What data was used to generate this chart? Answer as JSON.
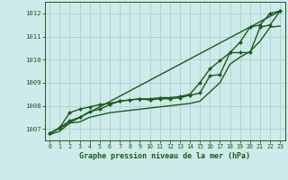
{
  "title": "Graphe pression niveau de la mer (hPa)",
  "background_color": "#ceeaea",
  "grid_color": "#aed4d4",
  "line_color": "#1a5c1a",
  "marker_color": "#1a5c1a",
  "xlim": [
    -0.5,
    23.5
  ],
  "ylim": [
    1006.5,
    1012.5
  ],
  "yticks": [
    1007,
    1008,
    1009,
    1010,
    1011,
    1012
  ],
  "xticks": [
    0,
    1,
    2,
    3,
    4,
    5,
    6,
    7,
    8,
    9,
    10,
    11,
    12,
    13,
    14,
    15,
    16,
    17,
    18,
    19,
    20,
    21,
    22,
    23
  ],
  "series": [
    {
      "x": [
        0,
        23
      ],
      "y": [
        1006.8,
        1012.1
      ],
      "marker": false,
      "linewidth": 1.0
    },
    {
      "x": [
        0,
        1,
        2,
        3,
        4,
        5,
        6,
        7,
        8,
        9,
        10,
        11,
        12,
        13,
        14,
        15,
        16,
        17,
        18,
        19,
        20,
        21,
        22,
        23
      ],
      "y": [
        1006.8,
        1007.05,
        1007.7,
        1007.85,
        1007.95,
        1008.05,
        1008.1,
        1008.2,
        1008.25,
        1008.3,
        1008.3,
        1008.35,
        1008.35,
        1008.4,
        1008.5,
        1009.0,
        1009.6,
        1009.95,
        1010.3,
        1010.75,
        1011.4,
        1011.5,
        1012.0,
        1012.1
      ],
      "marker": true,
      "linewidth": 1.0
    },
    {
      "x": [
        0,
        1,
        2,
        3,
        4,
        5,
        6,
        7,
        8,
        9,
        10,
        11,
        12,
        13,
        14,
        15,
        16,
        17,
        18,
        19,
        20,
        21,
        22,
        23
      ],
      "y": [
        1006.8,
        1007.05,
        1007.35,
        1007.5,
        1007.75,
        1007.85,
        1008.05,
        1008.2,
        1008.25,
        1008.3,
        1008.25,
        1008.3,
        1008.3,
        1008.35,
        1008.45,
        1008.55,
        1009.3,
        1009.35,
        1010.3,
        1010.3,
        1010.3,
        1011.4,
        1011.5,
        1012.1
      ],
      "marker": true,
      "linewidth": 1.0
    },
    {
      "x": [
        0,
        1,
        2,
        3,
        4,
        5,
        6,
        7,
        8,
        9,
        10,
        11,
        12,
        13,
        14,
        15,
        16,
        17,
        18,
        19,
        20,
        21,
        22,
        23
      ],
      "y": [
        1006.75,
        1006.9,
        1007.25,
        1007.3,
        1007.5,
        1007.6,
        1007.7,
        1007.75,
        1007.8,
        1007.85,
        1007.9,
        1007.95,
        1008.0,
        1008.05,
        1008.1,
        1008.2,
        1008.6,
        1009.0,
        1009.8,
        1010.1,
        1010.35,
        1010.8,
        1011.4,
        1011.45
      ],
      "marker": false,
      "linewidth": 1.0
    }
  ]
}
